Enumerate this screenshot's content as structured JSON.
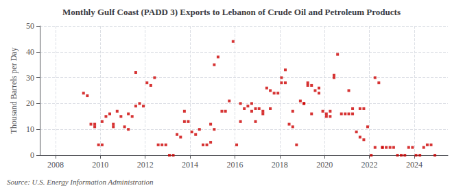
{
  "chart_data": {
    "type": "scatter",
    "title": "Monthly Gulf Coast (PADD 3) Exports to Lebanon of Crude Oil and Petroleum Products",
    "ylabel": "Thousand Barrels per Day",
    "annotations": [
      "Source: U.S. Energy Information Administration"
    ],
    "color": "#cc0000",
    "marker": "square",
    "grid": true,
    "xlim": [
      2007.3,
      2025.5
    ],
    "xticks": [
      2008,
      2010,
      2012,
      2014,
      2016,
      2018,
      2020,
      2022,
      2024
    ],
    "ylim": [
      0,
      50
    ],
    "yticks": [
      0,
      10,
      20,
      30,
      40,
      50
    ],
    "x": [
      2009.25,
      2009.42,
      2009.58,
      2009.75,
      2009.92,
      2010.08,
      2010.25,
      2010.42,
      2010.58,
      2010.75,
      2010.92,
      2011.08,
      2011.25,
      2011.42,
      2011.58,
      2011.75,
      2011.92,
      2012.08,
      2012.25,
      2012.42,
      2012.58,
      2012.75,
      2012.92,
      2013.08,
      2013.25,
      2013.42,
      2013.58,
      2013.75,
      2013.92,
      2014.08,
      2014.25,
      2014.42,
      2014.58,
      2014.75,
      2014.92,
      2015.08,
      2015.25,
      2015.42,
      2015.58,
      2015.75,
      2015.92,
      2016.08,
      2016.25,
      2016.42,
      2016.58,
      2016.75,
      2016.92,
      2017.08,
      2017.25,
      2017.42,
      2017.58,
      2017.75,
      2017.92,
      2018.08,
      2018.25,
      2018.42,
      2018.58,
      2018.75,
      2018.92,
      2019.08,
      2019.25,
      2019.42,
      2019.58,
      2019.75,
      2019.92,
      2020.08,
      2020.25,
      2020.42,
      2020.58,
      2020.75,
      2020.92,
      2021.08,
      2021.25,
      2021.42,
      2021.58,
      2021.75,
      2021.92,
      2022.08,
      2022.25,
      2022.42,
      2022.58,
      2022.75,
      2022.92,
      2023.08,
      2023.25,
      2023.42,
      2023.58,
      2023.75,
      2023.92,
      2024.08,
      2024.25,
      2024.42,
      2024.58,
      2024.75,
      2024.92,
      2015.08,
      2016.25,
      2017.58,
      2018.58,
      2019.08,
      2019.42,
      2020.25,
      2021.58,
      2022.25,
      2010.58,
      2011.25,
      2013.75,
      2014.92,
      2016.92,
      2018.08,
      2019.75,
      2022.58,
      2009.75,
      2010.08,
      2011.58,
      2016.75,
      2017.25,
      2018.25,
      2019.25,
      2020.08,
      2020.42,
      2021.08,
      2021.25,
      2021.75
    ],
    "values": [
      24,
      23,
      12,
      11,
      4,
      4,
      15,
      16,
      12,
      17,
      15,
      11,
      10,
      15,
      32,
      20,
      19,
      28,
      27,
      30,
      4,
      4,
      4,
      0,
      0,
      8,
      7,
      13,
      13,
      9,
      8,
      10,
      4,
      4,
      5,
      35,
      38,
      17,
      17,
      21,
      44,
      4,
      20,
      18,
      19,
      17,
      13,
      18,
      17,
      26,
      25,
      24,
      24,
      30,
      33,
      12,
      11,
      4,
      21,
      20,
      28,
      27,
      25,
      26,
      17,
      16,
      17,
      30,
      39,
      16,
      16,
      25,
      18,
      9,
      7,
      6,
      11,
      0,
      30,
      28,
      3,
      3,
      3,
      3,
      0,
      0,
      0,
      3,
      3,
      0,
      0,
      3,
      4,
      4,
      0,
      10,
      13,
      18,
      17,
      20,
      16,
      15,
      18,
      3,
      11,
      16,
      17,
      12,
      18,
      28,
      24,
      3,
      12,
      13,
      19,
      20,
      16,
      28,
      27,
      15,
      31,
      16,
      16,
      18
    ]
  }
}
